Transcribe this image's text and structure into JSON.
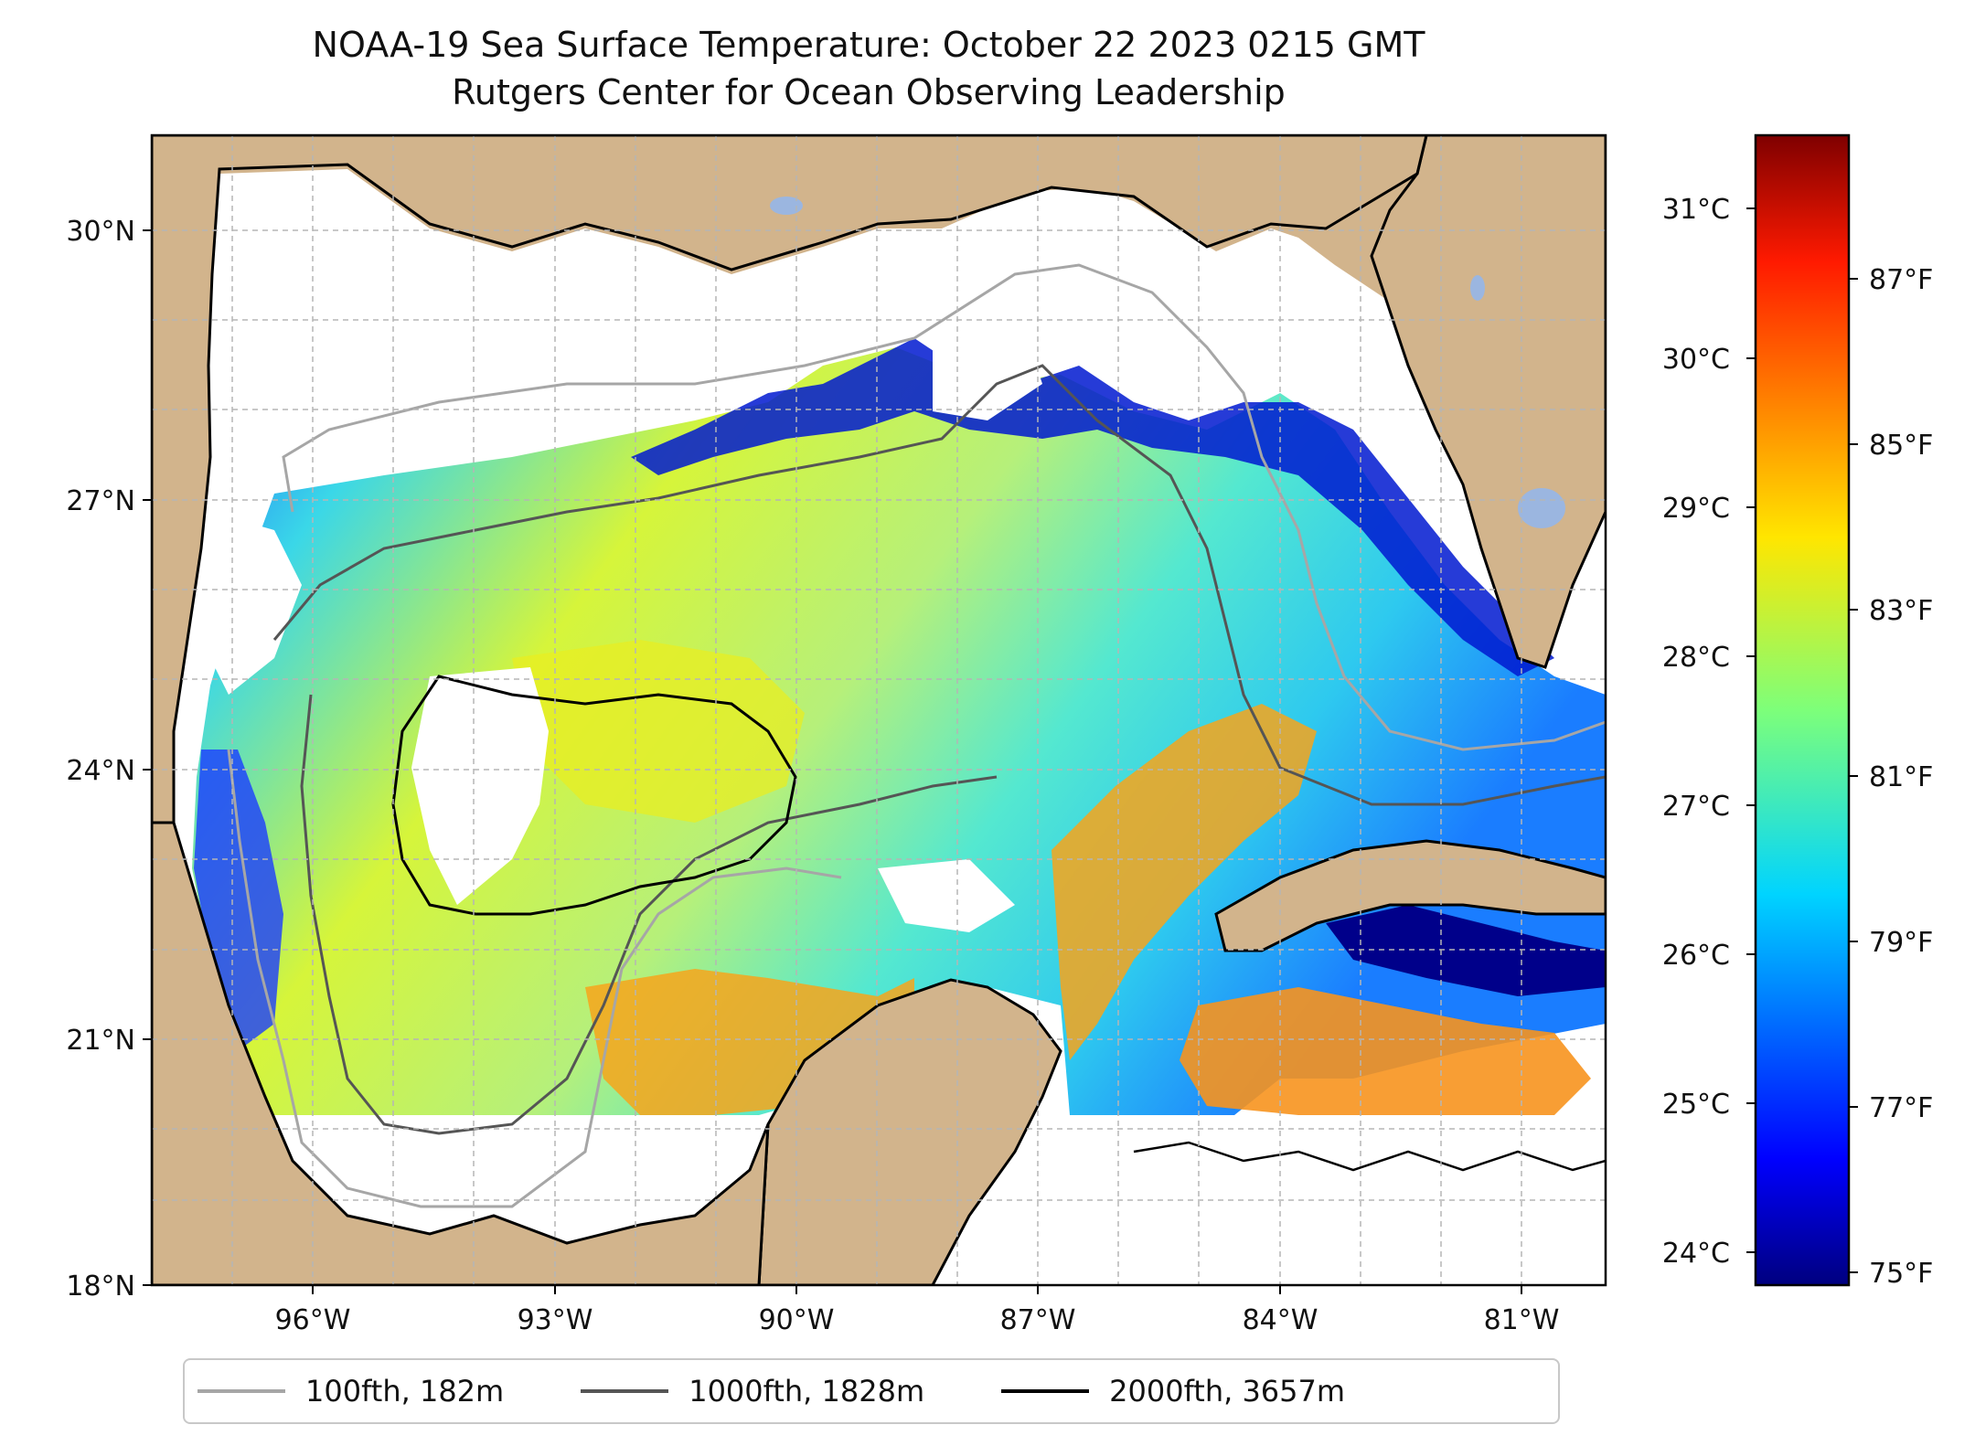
{
  "titles": {
    "line1": "NOAA-19 Sea Surface Temperature: October 22 2023 0215 GMT",
    "line2": "Rutgers Center for Ocean Observing Leadership"
  },
  "axes": {
    "lat_ticks": [
      "30°N",
      "27°N",
      "24°N",
      "21°N",
      "18°N"
    ],
    "lon_ticks": [
      "96°W",
      "93°W",
      "90°W",
      "87°W",
      "84°W",
      "81°W"
    ]
  },
  "colorbar": {
    "celsius_ticks": [
      "31°C",
      "30°C",
      "29°C",
      "28°C",
      "27°C",
      "26°C",
      "25°C",
      "24°C"
    ],
    "fahrenheit_ticks": [
      "87°F",
      "85°F",
      "83°F",
      "81°F",
      "79°F",
      "77°F",
      "75°F"
    ],
    "range_c": [
      23.8,
      31.5
    ],
    "colormap": "jet"
  },
  "legend": [
    {
      "label": "100fth, 182m",
      "color": "#a6a6a6"
    },
    {
      "label": "1000fth, 1828m",
      "color": "#555555"
    },
    {
      "label": "2000fth, 3657m",
      "color": "#000000"
    }
  ],
  "colors": {
    "land": "#d2b48c",
    "lake": "#9bb6e0",
    "no_data": "#ffffff"
  }
}
